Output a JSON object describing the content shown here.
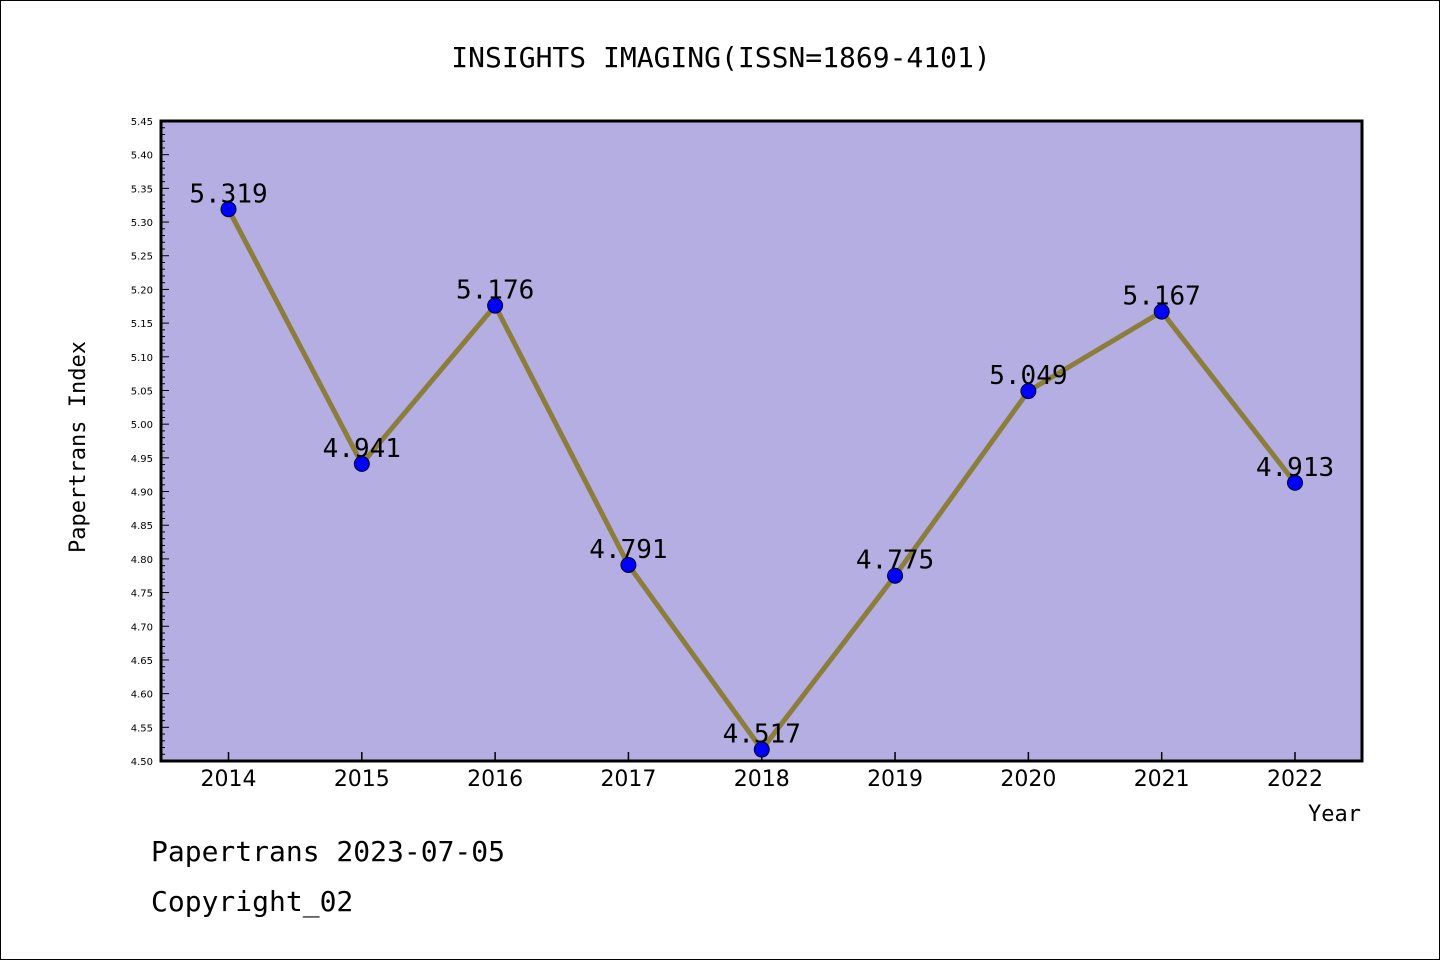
{
  "colors": {
    "plot_background": "#b5aee2",
    "line": "#8b7d3a",
    "marker": "#0000ff",
    "axis": "#000000"
  },
  "chart_data": {
    "type": "line",
    "title": "INSIGHTS IMAGING(ISSN=1869-4101)",
    "xlabel": "Year",
    "ylabel": "Papertrans Index",
    "categories": [
      "2014",
      "2015",
      "2016",
      "2017",
      "2018",
      "2019",
      "2020",
      "2021",
      "2022"
    ],
    "series": [
      {
        "values": [
          5.319,
          4.941,
          5.176,
          4.791,
          4.517,
          4.775,
          5.049,
          5.167,
          4.913
        ],
        "labels": [
          "5.319",
          "4.941",
          "5.176",
          "4.791",
          "4.517",
          "4.775",
          "5.049",
          "5.167",
          "4.913"
        ]
      }
    ],
    "ylim": [
      4.5,
      5.45
    ],
    "yticks": [
      "4.50",
      "4.55",
      "4.60",
      "4.65",
      "4.70",
      "4.75",
      "4.80",
      "4.85",
      "4.90",
      "4.95",
      "5.00",
      "5.05",
      "5.10",
      "5.15",
      "5.20",
      "5.25",
      "5.30",
      "5.35",
      "5.40",
      "5.45"
    ],
    "grid": false,
    "legend": "none"
  },
  "footer": {
    "line1": "Papertrans 2023-07-05",
    "line2": "Copyright_02"
  }
}
